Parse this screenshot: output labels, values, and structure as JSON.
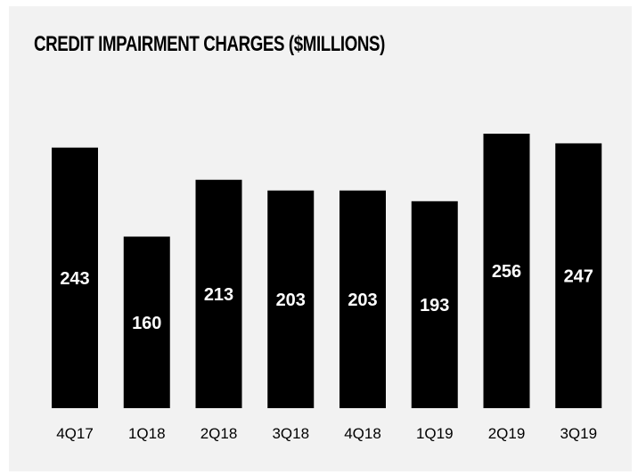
{
  "chart_data": {
    "type": "bar",
    "title": "CREDIT IMPAIRMENT CHARGES ($MILLIONS)",
    "categories": [
      "4Q17",
      "1Q18",
      "2Q18",
      "3Q18",
      "4Q18",
      "1Q19",
      "2Q19",
      "3Q19"
    ],
    "values": [
      243,
      160,
      213,
      203,
      203,
      193,
      256,
      247
    ],
    "xlabel": "",
    "ylabel": "",
    "ylim": [
      0,
      256
    ],
    "grid": false,
    "bar_color": "#000000",
    "label_color": "#ffffff",
    "background_color": "#f2f2f2"
  }
}
